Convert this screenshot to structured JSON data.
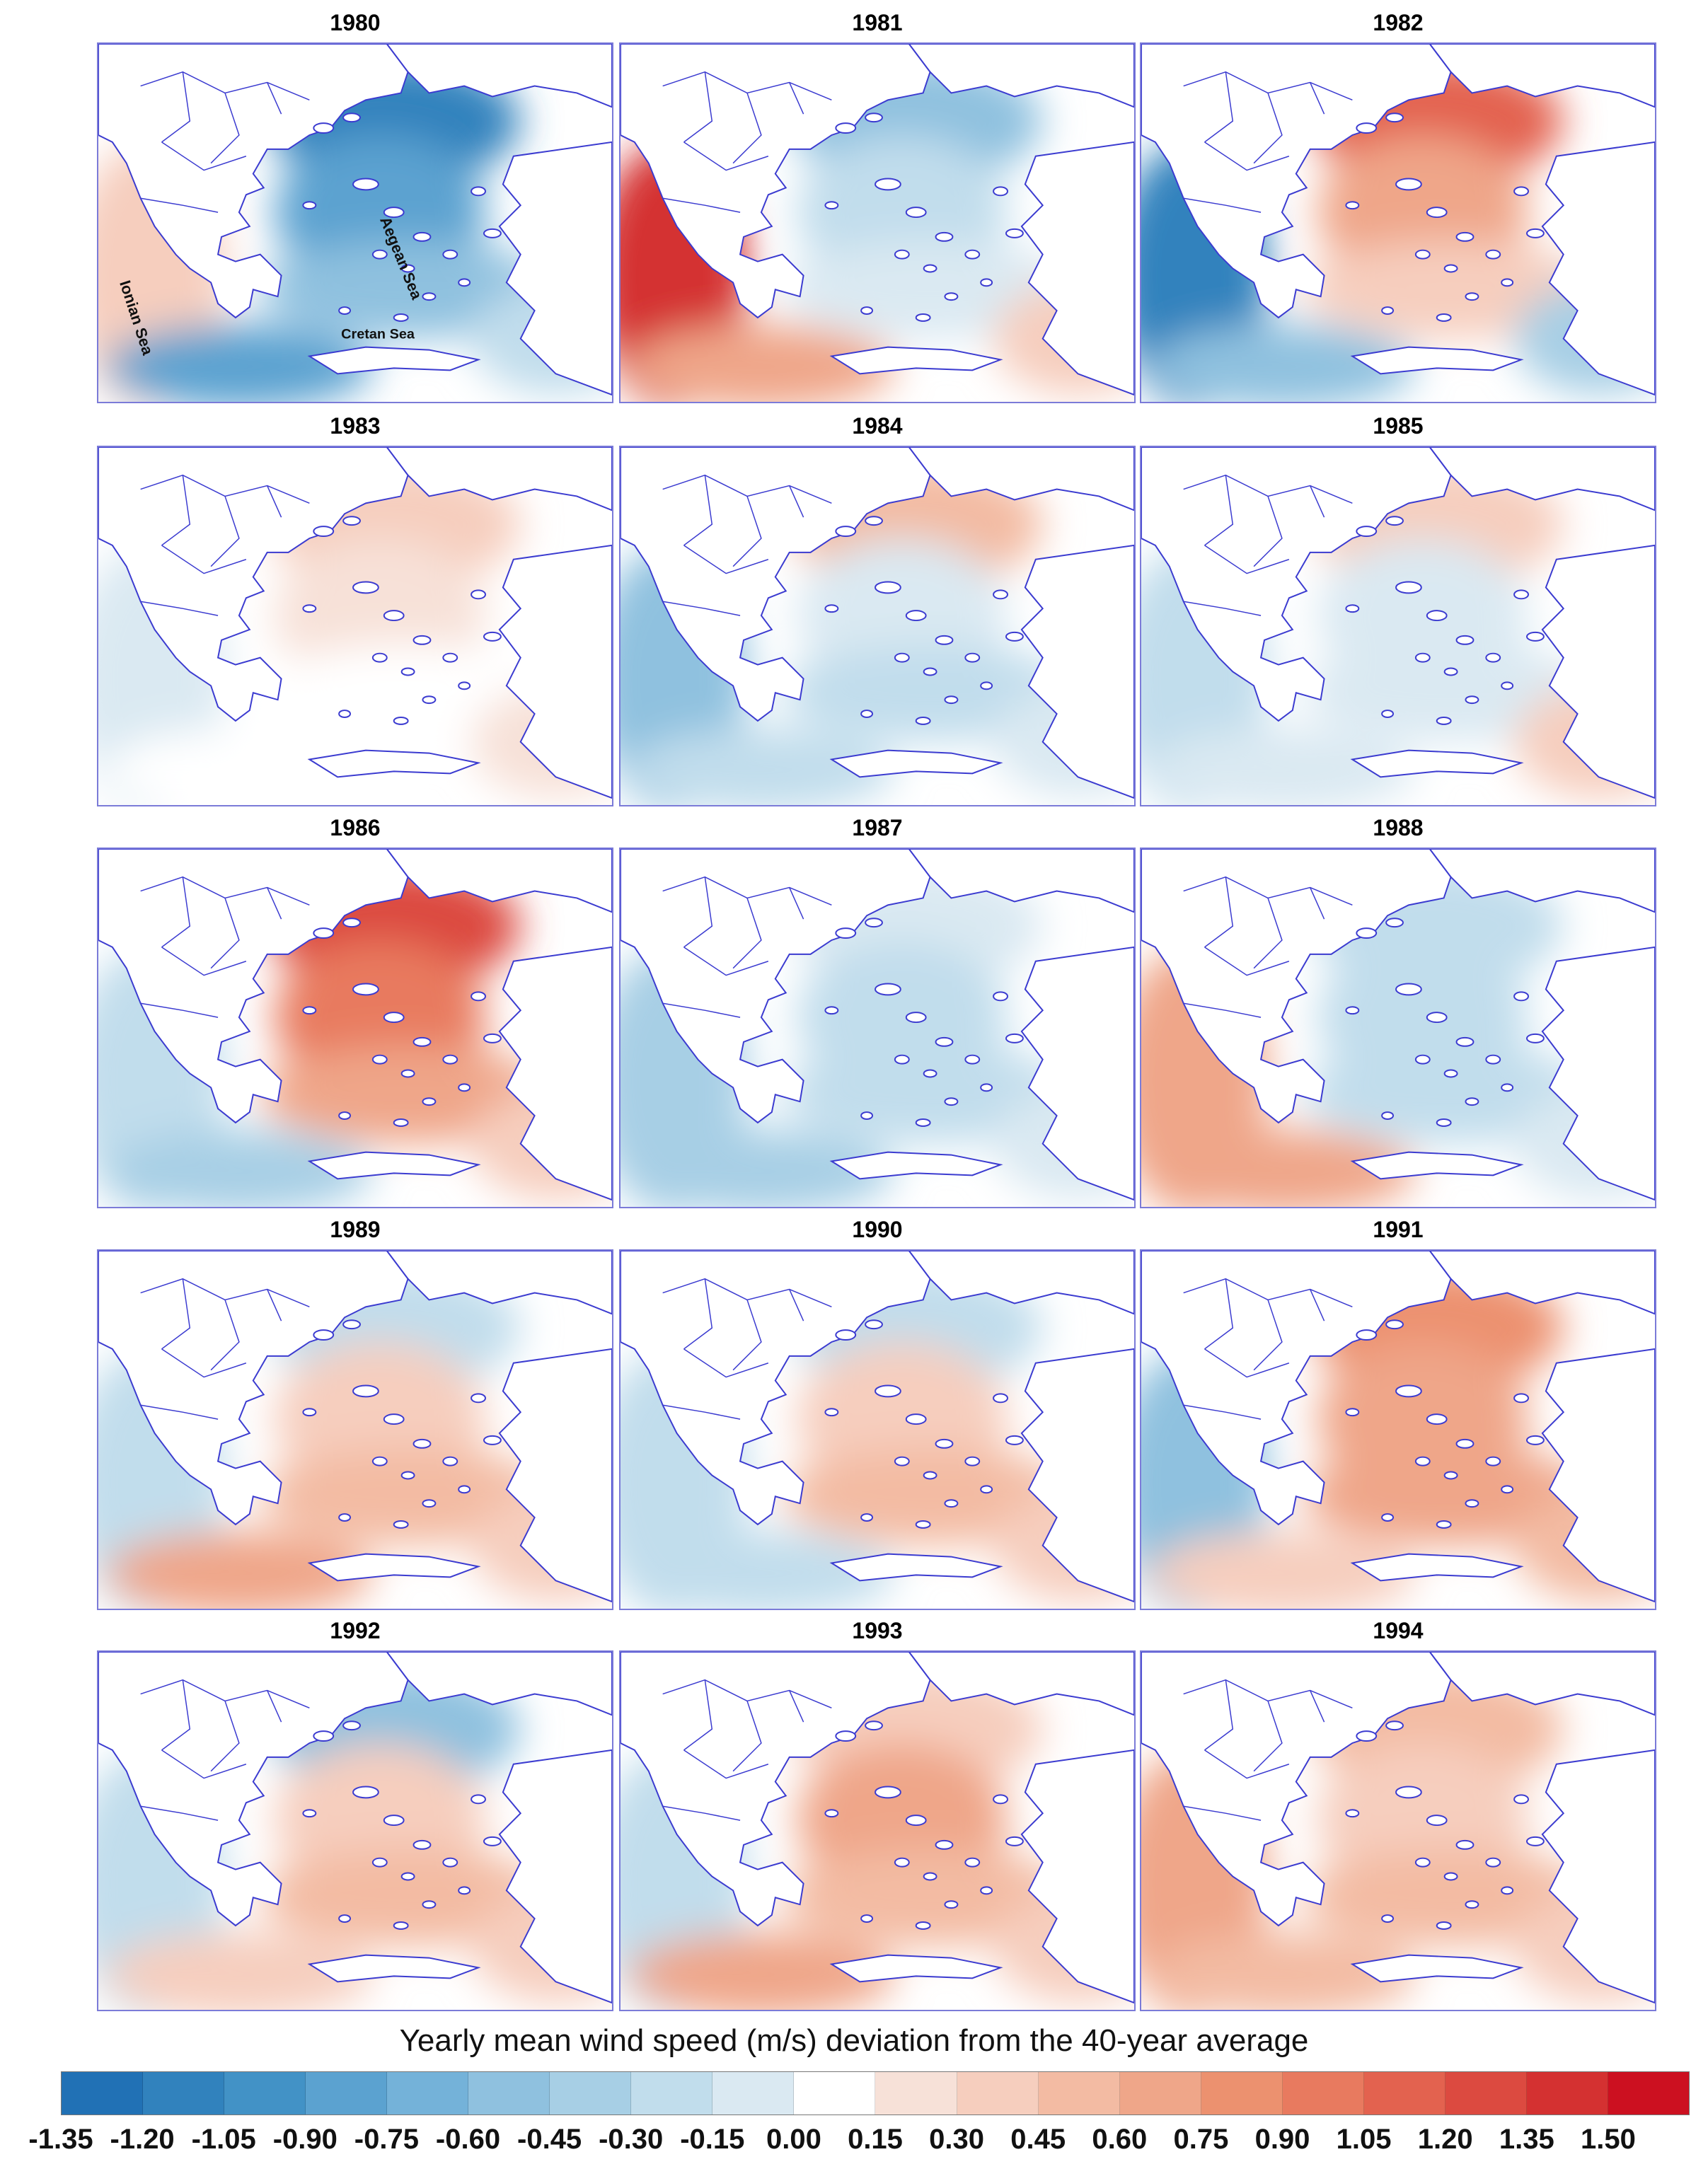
{
  "panels": [
    {
      "year": "1980",
      "pattern": [
        -1.3,
        -1.0,
        -0.6,
        0.2,
        -0.9,
        -0.4
      ],
      "labels": true
    },
    {
      "year": "1981",
      "pattern": [
        -0.7,
        -0.4,
        -0.2,
        1.3,
        0.6,
        0.3
      ]
    },
    {
      "year": "1982",
      "pattern": [
        1.0,
        0.5,
        0.3,
        -1.3,
        -0.6,
        -0.5
      ]
    },
    {
      "year": "1983",
      "pattern": [
        0.3,
        0.1,
        0.0,
        -0.15,
        0.0,
        0.1
      ]
    },
    {
      "year": "1984",
      "pattern": [
        0.4,
        -0.2,
        -0.3,
        -0.6,
        -0.3,
        -0.2
      ]
    },
    {
      "year": "1985",
      "pattern": [
        0.2,
        -0.2,
        -0.2,
        -0.3,
        -0.2,
        0.2
      ]
    },
    {
      "year": "1986",
      "pattern": [
        1.2,
        0.8,
        0.5,
        -0.3,
        -0.5,
        0.2
      ]
    },
    {
      "year": "1987",
      "pattern": [
        -0.2,
        -0.4,
        -0.3,
        -0.5,
        -0.5,
        -0.2
      ]
    },
    {
      "year": "1988",
      "pattern": [
        -0.3,
        -0.3,
        -0.3,
        0.6,
        0.5,
        -0.2
      ]
    },
    {
      "year": "1989",
      "pattern": [
        -0.4,
        0.3,
        0.4,
        -0.4,
        0.5,
        0.3
      ]
    },
    {
      "year": "1990",
      "pattern": [
        -0.3,
        0.2,
        0.4,
        -0.4,
        -0.3,
        0.3
      ]
    },
    {
      "year": "1991",
      "pattern": [
        0.7,
        0.5,
        0.5,
        -0.7,
        0.2,
        0.4
      ]
    },
    {
      "year": "1992",
      "pattern": [
        -0.6,
        0.3,
        0.4,
        -0.4,
        0.3,
        0.2
      ]
    },
    {
      "year": "1993",
      "pattern": [
        0.3,
        0.5,
        0.4,
        -0.3,
        0.5,
        0.2
      ]
    },
    {
      "year": "1994",
      "pattern": [
        0.4,
        0.3,
        0.4,
        0.5,
        0.4,
        0.2
      ]
    }
  ],
  "sea_labels": {
    "aegean": "Aegean Sea",
    "ionian": "Ionian Sea",
    "cretan": "Cretan Sea"
  },
  "colorbar": {
    "title": "Yearly mean wind speed (m/s) deviation from the 40-year average",
    "ticks": [
      "-1.35",
      "-1.20",
      "-1.05",
      "-0.90",
      "-0.75",
      "-0.60",
      "-0.45",
      "-0.30",
      "-0.15",
      "0.00",
      "0.15",
      "0.30",
      "0.45",
      "0.60",
      "0.75",
      "0.90",
      "1.05",
      "1.20",
      "1.35",
      "1.50"
    ],
    "colors": [
      "#2171b5",
      "#3182bd",
      "#4292c6",
      "#5ba2d0",
      "#74b2d9",
      "#8fc1df",
      "#a7cfe5",
      "#c1ddec",
      "#dae9f2",
      "#ffffff",
      "#f7e1d8",
      "#f6cebe",
      "#f3bba3",
      "#efa689",
      "#ec916f",
      "#e87a5f",
      "#e3624f",
      "#dc4a40",
      "#d43131",
      "#cc1020"
    ]
  }
}
